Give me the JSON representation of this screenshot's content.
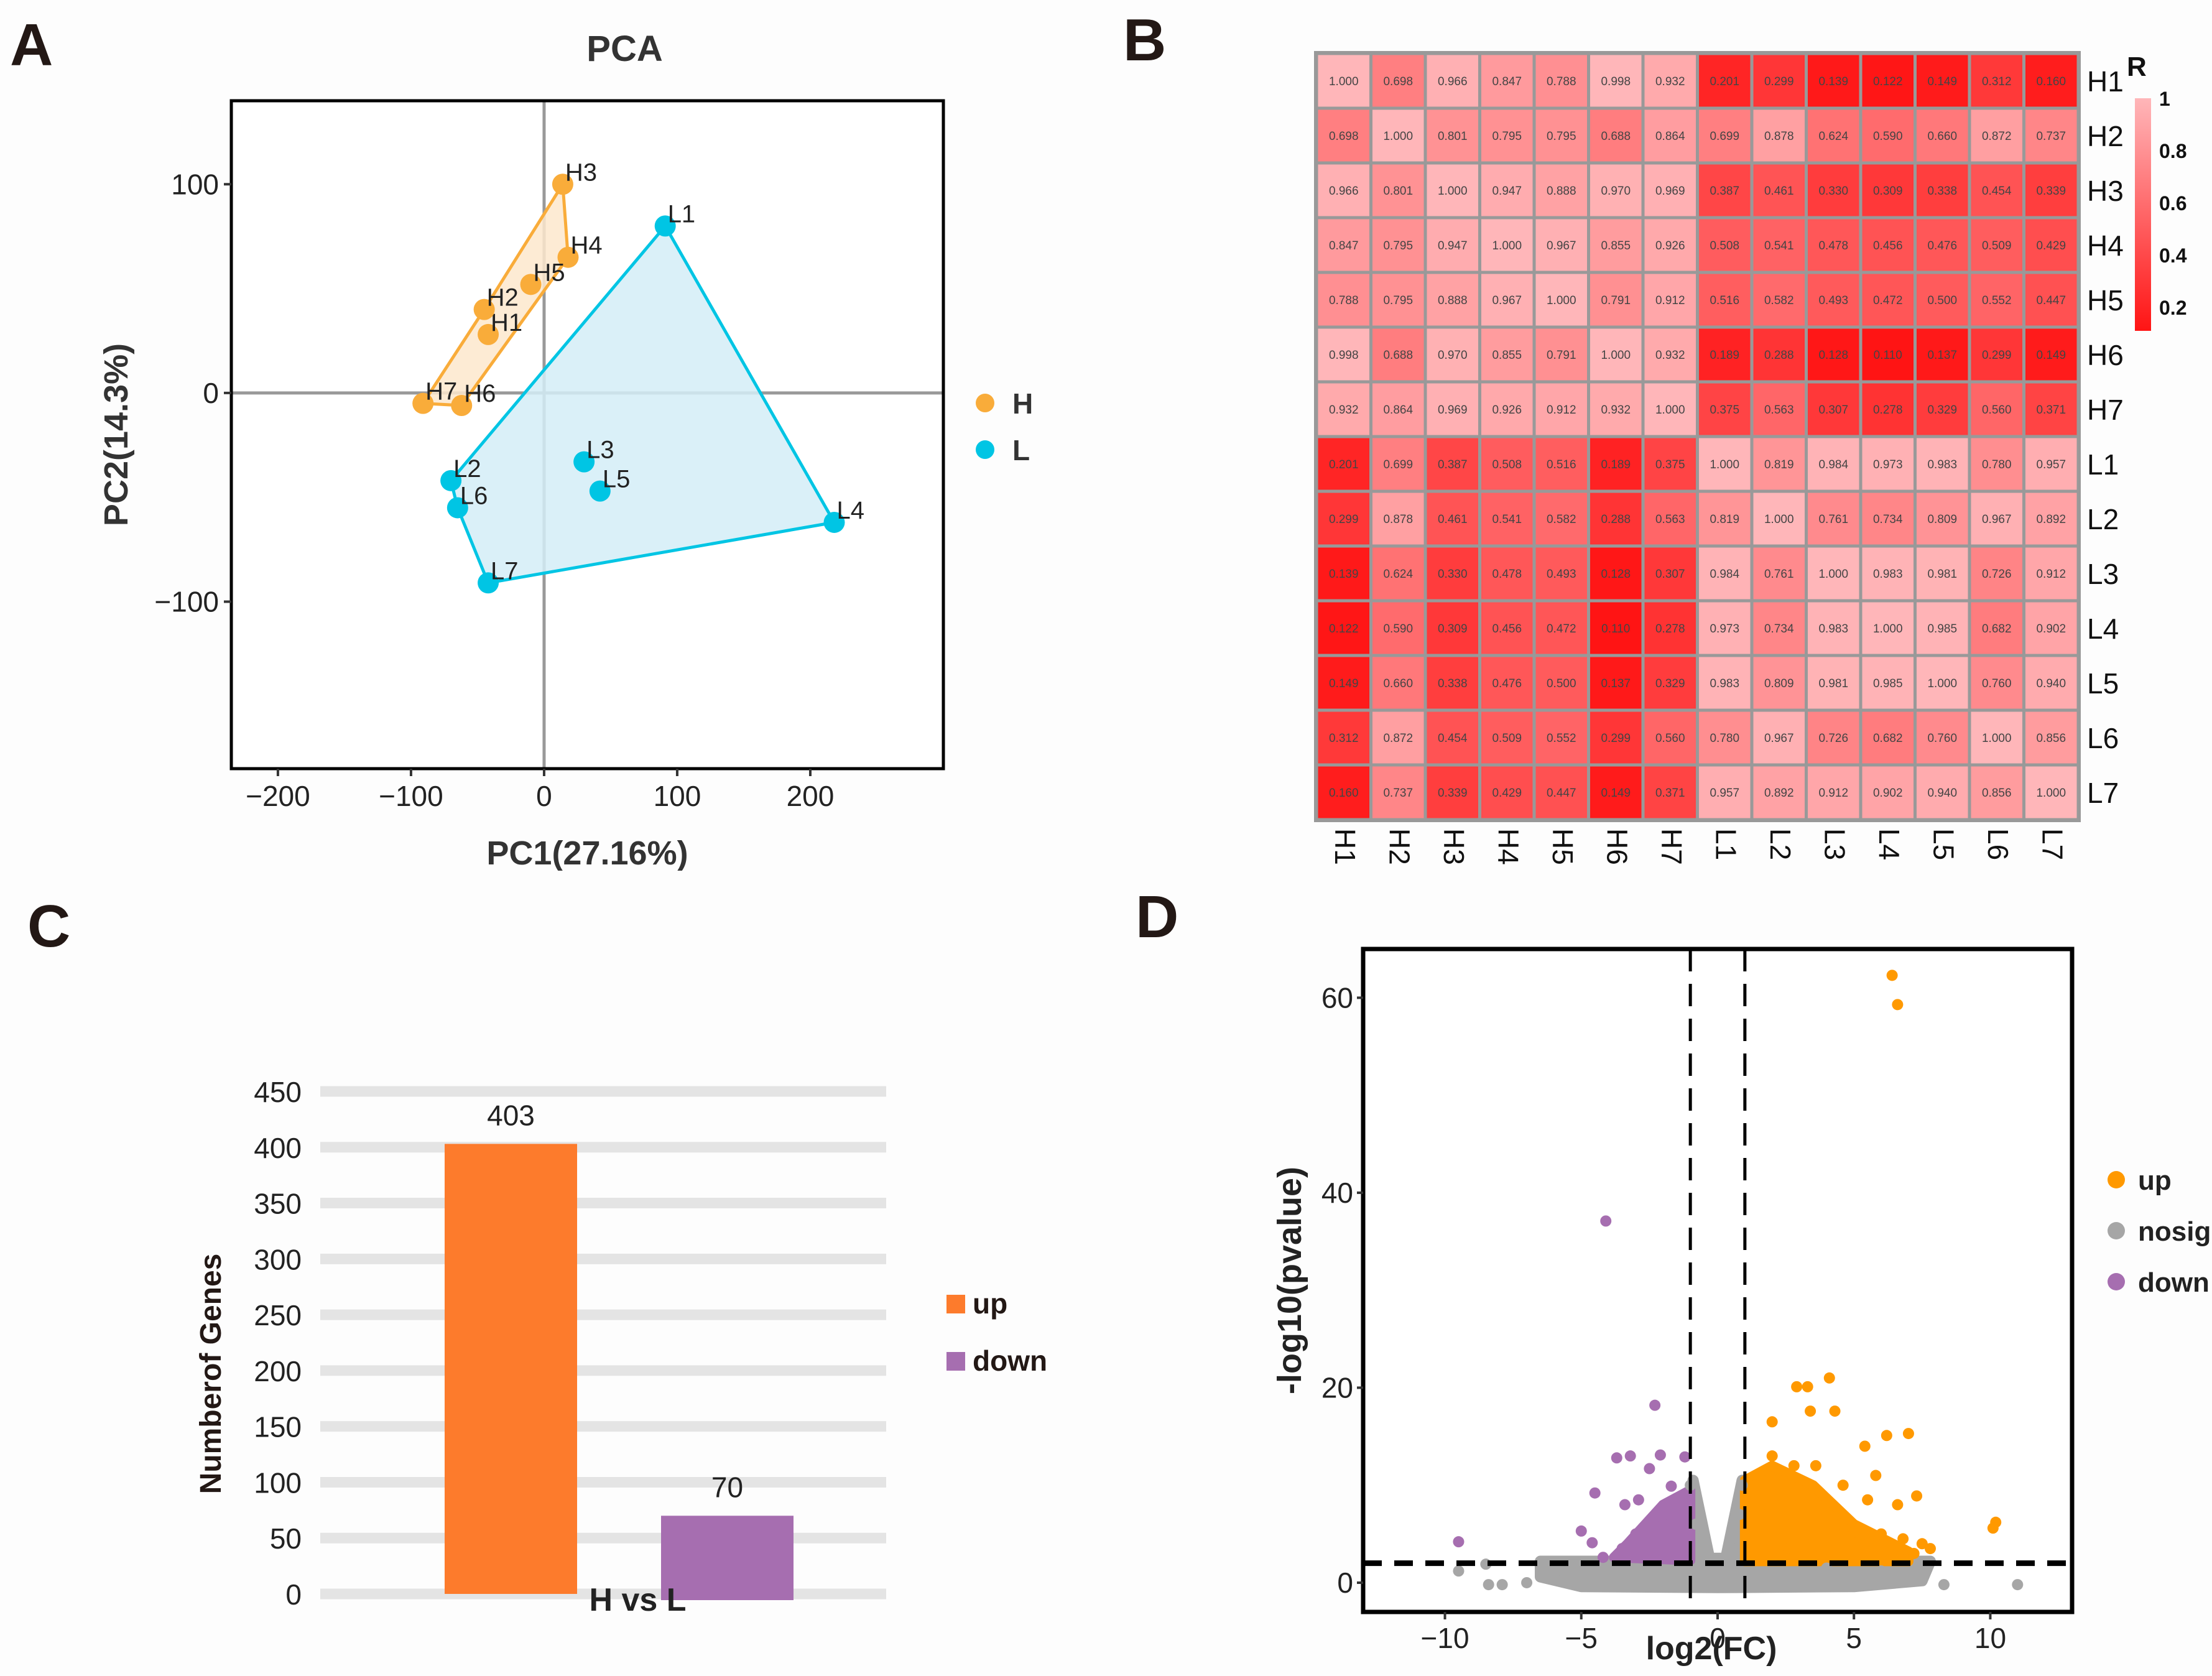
{
  "panels": {
    "a": "A",
    "b": "B",
    "c": "C",
    "d": "D"
  },
  "chart_data": [
    {
      "id": "pca",
      "type": "scatter",
      "title": "PCA",
      "xlabel": "PC1(27.16%)",
      "ylabel": "PC2(14.3%)",
      "xlim": [
        -235,
        300
      ],
      "ylim": [
        -180,
        140
      ],
      "xticks": [
        -200,
        -100,
        0,
        100,
        200
      ],
      "yticks": [
        -100,
        0,
        100
      ],
      "xtick_labels": [
        "−200",
        "−100",
        "0",
        "100",
        "200"
      ],
      "ytick_labels": [
        "−100",
        "0",
        "100"
      ],
      "reference_lines": {
        "x": 0,
        "y": 0
      },
      "grid": false,
      "legend_position": "right",
      "series": [
        {
          "name": "H",
          "color": "#F9AC3A",
          "hull_fill": "#FDE7CC",
          "points": [
            {
              "label": "H1",
              "x": -42,
              "y": 28
            },
            {
              "label": "H2",
              "x": -45,
              "y": 40
            },
            {
              "label": "H3",
              "x": 14,
              "y": 100
            },
            {
              "label": "H4",
              "x": 18,
              "y": 65
            },
            {
              "label": "H5",
              "x": -10,
              "y": 52
            },
            {
              "label": "H6",
              "x": -62,
              "y": -6
            },
            {
              "label": "H7",
              "x": -91,
              "y": -5
            }
          ],
          "hull": [
            "H3",
            "H4",
            "H6",
            "H7",
            "H2"
          ]
        },
        {
          "name": "L",
          "color": "#00C5E4",
          "hull_fill": "#D3EDF7",
          "points": [
            {
              "label": "L1",
              "x": 91,
              "y": 80
            },
            {
              "label": "L2",
              "x": -70,
              "y": -42
            },
            {
              "label": "L3",
              "x": 30,
              "y": -33
            },
            {
              "label": "L4",
              "x": 218,
              "y": -62
            },
            {
              "label": "L5",
              "x": 42,
              "y": -47
            },
            {
              "label": "L6",
              "x": -65,
              "y": -55
            },
            {
              "label": "L7",
              "x": -42,
              "y": -91
            }
          ],
          "hull": [
            "L1",
            "L4",
            "L7",
            "L6",
            "L2"
          ]
        }
      ]
    },
    {
      "id": "correlation",
      "type": "heatmap",
      "title": "",
      "legend_title": "R",
      "colorbar_ticks": [
        "1",
        "0.8",
        "0.6",
        "0.4",
        "0.2"
      ],
      "colorbar_range": [
        0.11,
        1.0
      ],
      "color_low": "#FF1414",
      "color_high": "#FFB6B9",
      "rows": [
        "H1",
        "H2",
        "H3",
        "H4",
        "H5",
        "H6",
        "H7",
        "L1",
        "L2",
        "L3",
        "L4",
        "L5",
        "L6",
        "L7"
      ],
      "cols": [
        "H1",
        "H2",
        "H3",
        "H4",
        "H5",
        "H6",
        "H7",
        "L1",
        "L2",
        "L3",
        "L4",
        "L5",
        "L6",
        "L7"
      ],
      "values": [
        [
          "1.000",
          "0.698",
          "0.966",
          "0.847",
          "0.788",
          "0.998",
          "0.932",
          "0.201",
          "0.299",
          "0.139",
          "0.122",
          "0.149",
          "0.312",
          "0.160"
        ],
        [
          "0.698",
          "1.000",
          "0.801",
          "0.795",
          "0.795",
          "0.688",
          "0.864",
          "0.699",
          "0.878",
          "0.624",
          "0.590",
          "0.660",
          "0.872",
          "0.737"
        ],
        [
          "0.966",
          "0.801",
          "1.000",
          "0.947",
          "0.888",
          "0.970",
          "0.969",
          "0.387",
          "0.461",
          "0.330",
          "0.309",
          "0.338",
          "0.454",
          "0.339"
        ],
        [
          "0.847",
          "0.795",
          "0.947",
          "1.000",
          "0.967",
          "0.855",
          "0.926",
          "0.508",
          "0.541",
          "0.478",
          "0.456",
          "0.476",
          "0.509",
          "0.429"
        ],
        [
          "0.788",
          "0.795",
          "0.888",
          "0.967",
          "1.000",
          "0.791",
          "0.912",
          "0.516",
          "0.582",
          "0.493",
          "0.472",
          "0.500",
          "0.552",
          "0.447"
        ],
        [
          "0.998",
          "0.688",
          "0.970",
          "0.855",
          "0.791",
          "1.000",
          "0.932",
          "0.189",
          "0.288",
          "0.128",
          "0.110",
          "0.137",
          "0.299",
          "0.149"
        ],
        [
          "0.932",
          "0.864",
          "0.969",
          "0.926",
          "0.912",
          "0.932",
          "1.000",
          "0.375",
          "0.563",
          "0.307",
          "0.278",
          "0.329",
          "0.560",
          "0.371"
        ],
        [
          "0.201",
          "0.699",
          "0.387",
          "0.508",
          "0.516",
          "0.189",
          "0.375",
          "1.000",
          "0.819",
          "0.984",
          "0.973",
          "0.983",
          "0.780",
          "0.957"
        ],
        [
          "0.299",
          "0.878",
          "0.461",
          "0.541",
          "0.582",
          "0.288",
          "0.563",
          "0.819",
          "1.000",
          "0.761",
          "0.734",
          "0.809",
          "0.967",
          "0.892"
        ],
        [
          "0.139",
          "0.624",
          "0.330",
          "0.478",
          "0.493",
          "0.128",
          "0.307",
          "0.984",
          "0.761",
          "1.000",
          "0.983",
          "0.981",
          "0.726",
          "0.912"
        ],
        [
          "0.122",
          "0.590",
          "0.309",
          "0.456",
          "0.472",
          "0.110",
          "0.278",
          "0.973",
          "0.734",
          "0.983",
          "1.000",
          "0.985",
          "0.682",
          "0.902"
        ],
        [
          "0.149",
          "0.660",
          "0.338",
          "0.476",
          "0.500",
          "0.137",
          "0.329",
          "0.983",
          "0.809",
          "0.981",
          "0.985",
          "1.000",
          "0.760",
          "0.940"
        ],
        [
          "0.312",
          "0.872",
          "0.454",
          "0.509",
          "0.552",
          "0.299",
          "0.560",
          "0.780",
          "0.967",
          "0.726",
          "0.682",
          "0.760",
          "1.000",
          "0.856"
        ],
        [
          "0.160",
          "0.737",
          "0.339",
          "0.429",
          "0.447",
          "0.149",
          "0.371",
          "0.957",
          "0.892",
          "0.912",
          "0.902",
          "0.940",
          "0.856",
          "1.000"
        ]
      ]
    },
    {
      "id": "deg-bar",
      "type": "bar",
      "title": "",
      "categories": [
        "H vs L"
      ],
      "xlabel": "H vs L",
      "ylabel": "Numberof Genes",
      "ylim": [
        0,
        450
      ],
      "yticks": [
        0,
        50,
        100,
        150,
        200,
        250,
        300,
        350,
        400,
        450
      ],
      "grid": true,
      "legend_position": "right",
      "series": [
        {
          "name": "up",
          "values": [
            403
          ],
          "color": "#FD7B2C",
          "label": "403"
        },
        {
          "name": "down",
          "values": [
            70
          ],
          "color": "#A66EB0",
          "label": "70"
        }
      ]
    },
    {
      "id": "volcano",
      "type": "scatter",
      "title": "",
      "xlabel": "log2(FC)",
      "ylabel": "-log10(pvalue)",
      "xlim": [
        -13,
        13
      ],
      "ylim": [
        -3,
        65
      ],
      "xticks": [
        -10,
        -5,
        0,
        5,
        10
      ],
      "xtick_labels": [
        "−10",
        "−5",
        "0",
        "5",
        "10"
      ],
      "yticks": [
        0,
        20,
        40,
        60
      ],
      "thresholds": {
        "log2fc": [
          -1,
          1
        ],
        "neg_log10_p": 2
      },
      "legend_position": "right",
      "series": [
        {
          "name": "up",
          "color": "#FF9900",
          "points": [
            [
              6.4,
              62.3
            ],
            [
              6.6,
              59.3
            ],
            [
              4.1,
              21.0
            ],
            [
              3.3,
              20.1
            ],
            [
              2.9,
              20.1
            ],
            [
              3.4,
              17.6
            ],
            [
              4.3,
              17.6
            ],
            [
              2.0,
              16.5
            ],
            [
              7.0,
              15.3
            ],
            [
              6.2,
              15.1
            ],
            [
              5.4,
              14.0
            ],
            [
              1.4,
              10.0
            ],
            [
              2.0,
              13.0
            ],
            [
              2.8,
              12.0
            ],
            [
              3.6,
              12.0
            ],
            [
              5.8,
              11.0
            ],
            [
              4.6,
              10.0
            ],
            [
              7.3,
              8.9
            ],
            [
              6.6,
              8.0
            ],
            [
              5.5,
              8.5
            ],
            [
              10.2,
              6.2
            ],
            [
              10.1,
              5.6
            ],
            [
              2.2,
              9.0
            ],
            [
              3.0,
              8.0
            ],
            [
              3.9,
              7.5
            ],
            [
              4.5,
              6.0
            ],
            [
              5.0,
              5.2
            ],
            [
              6.0,
              5.0
            ],
            [
              6.8,
              4.5
            ],
            [
              7.5,
              4.0
            ],
            [
              7.8,
              3.5
            ],
            [
              7.2,
              3.0
            ],
            [
              1.6,
              7.0
            ],
            [
              2.5,
              6.0
            ],
            [
              3.3,
              5.0
            ],
            [
              4.0,
              4.0
            ],
            [
              1.8,
              4.5
            ],
            [
              2.6,
              3.5
            ],
            [
              3.8,
              3.0
            ],
            [
              5.6,
              3.2
            ]
          ]
        },
        {
          "name": "nosig",
          "color": "#A6A6A6",
          "points": [
            [
              -9.5,
              1.2
            ],
            [
              -8.5,
              1.9
            ],
            [
              -8.4,
              -0.2
            ],
            [
              -7.9,
              -0.2
            ],
            [
              -6.2,
              0.5
            ],
            [
              -5.0,
              0.2
            ],
            [
              -4.0,
              0.0
            ],
            [
              -3.0,
              0.3
            ],
            [
              -2.0,
              0.5
            ],
            [
              -1.0,
              10.0
            ],
            [
              -0.8,
              6.0
            ],
            [
              -0.5,
              3.0
            ],
            [
              0,
              1.0
            ],
            [
              0.5,
              3.0
            ],
            [
              0.8,
              7.0
            ],
            [
              0.9,
              10.0
            ],
            [
              1.5,
              0.5
            ],
            [
              3.0,
              0.2
            ],
            [
              5.0,
              0.3
            ],
            [
              6.5,
              0.5
            ],
            [
              7.3,
              1.0
            ],
            [
              8.3,
              -0.2
            ],
            [
              11.0,
              -0.2
            ],
            [
              -7.0,
              0.0
            ],
            [
              -6.0,
              1.5
            ],
            [
              2.0,
              1.0
            ],
            [
              4.0,
              1.5
            ],
            [
              6.0,
              1.2
            ]
          ]
        },
        {
          "name": "down",
          "color": "#A66EB0",
          "points": [
            [
              -4.1,
              37.1
            ],
            [
              -2.3,
              18.2
            ],
            [
              -3.2,
              13.0
            ],
            [
              -3.7,
              12.8
            ],
            [
              -2.1,
              13.1
            ],
            [
              -1.2,
              12.9
            ],
            [
              -2.5,
              11.7
            ],
            [
              -1.7,
              9.9
            ],
            [
              -4.5,
              9.2
            ],
            [
              -3.4,
              8.0
            ],
            [
              -2.9,
              8.5
            ],
            [
              -1.3,
              8.3
            ],
            [
              -5.0,
              5.3
            ],
            [
              -9.5,
              4.2
            ],
            [
              -4.6,
              4.1
            ],
            [
              -3.0,
              5.0
            ],
            [
              -2.0,
              6.0
            ],
            [
              -1.5,
              4.0
            ],
            [
              -3.5,
              3.5
            ],
            [
              -4.2,
              2.6
            ],
            [
              -2.5,
              3.0
            ],
            [
              -1.8,
              7.0
            ]
          ]
        }
      ]
    }
  ]
}
